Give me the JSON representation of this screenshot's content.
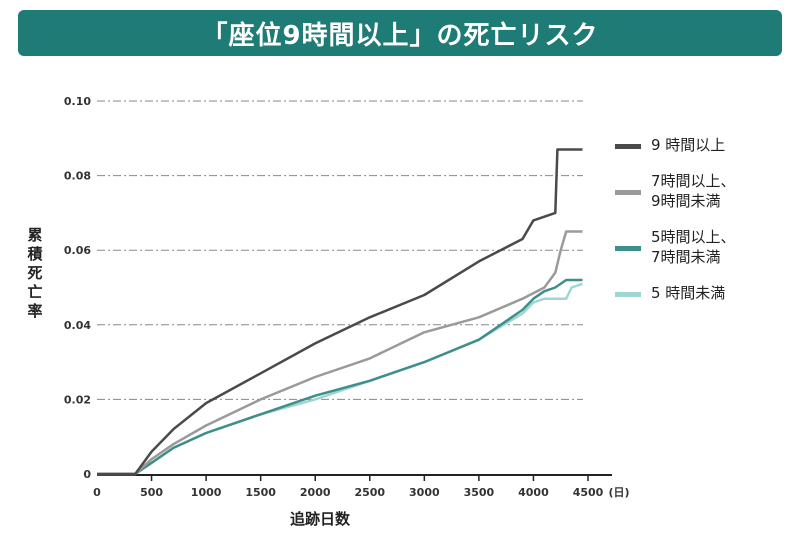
{
  "title": "「座位9時間以上」の死亡リスク",
  "chart_data": {
    "type": "line",
    "title": "「座位9時間以上」の死亡リスク",
    "xlabel": "追跡日数",
    "x_unit": "(日)",
    "ylabel": "累積死亡率",
    "xlim": [
      0,
      4600
    ],
    "ylim": [
      0,
      0.1
    ],
    "x_ticks": [
      "0",
      "500",
      "1000",
      "1500",
      "2000",
      "2500",
      "3000",
      "3500",
      "4000",
      "4500"
    ],
    "y_ticks": [
      "0",
      "0.02",
      "0.04",
      "0.06",
      "0.08",
      "0.10"
    ],
    "grid": "horizontal dash-dot",
    "legend_position": "right",
    "series": [
      {
        "name": "9 時間以上",
        "color": "#4a4a4a",
        "x": [
          0,
          350,
          500,
          700,
          1000,
          1500,
          2000,
          2500,
          3000,
          3500,
          3900,
          4000,
          4200,
          4220,
          4450
        ],
        "y": [
          0,
          0,
          0.006,
          0.012,
          0.019,
          0.027,
          0.035,
          0.042,
          0.048,
          0.057,
          0.063,
          0.068,
          0.07,
          0.087,
          0.087
        ]
      },
      {
        "name": "7時間以上、\n9時間未満",
        "color": "#9a9a9a",
        "x": [
          0,
          350,
          500,
          700,
          1000,
          1500,
          2000,
          2500,
          3000,
          3500,
          3900,
          4100,
          4200,
          4250,
          4300,
          4450
        ],
        "y": [
          0,
          0,
          0.004,
          0.008,
          0.013,
          0.02,
          0.026,
          0.031,
          0.038,
          0.042,
          0.047,
          0.05,
          0.054,
          0.06,
          0.065,
          0.065
        ]
      },
      {
        "name": "5時間以上、\n7時間未満",
        "color": "#3e8f8c",
        "x": [
          0,
          350,
          500,
          700,
          1000,
          1500,
          2000,
          2500,
          3000,
          3500,
          3900,
          4000,
          4100,
          4200,
          4300,
          4450
        ],
        "y": [
          0,
          0,
          0.003,
          0.007,
          0.011,
          0.016,
          0.021,
          0.025,
          0.03,
          0.036,
          0.044,
          0.047,
          0.049,
          0.05,
          0.052,
          0.052
        ]
      },
      {
        "name": "5 時間未満",
        "color": "#9fd6d2",
        "x": [
          0,
          350,
          500,
          700,
          1000,
          1500,
          2000,
          2500,
          3000,
          3500,
          3900,
          4000,
          4100,
          4300,
          4350,
          4450
        ],
        "y": [
          0,
          0,
          0.003,
          0.007,
          0.011,
          0.016,
          0.02,
          0.025,
          0.03,
          0.036,
          0.043,
          0.046,
          0.047,
          0.047,
          0.05,
          0.051
        ]
      }
    ]
  }
}
